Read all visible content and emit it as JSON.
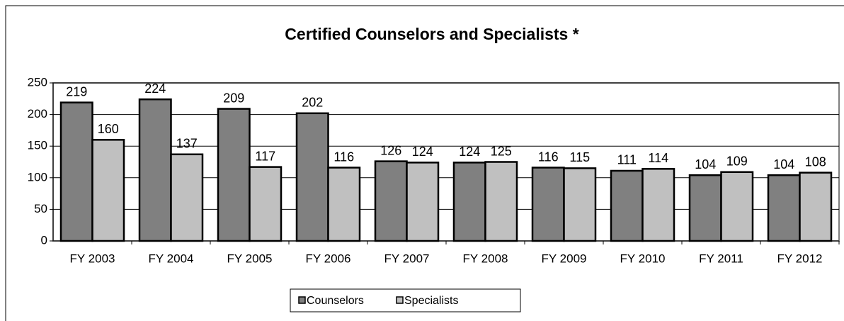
{
  "chart_data": {
    "type": "bar",
    "title": "Certified Counselors and Specialists *",
    "categories": [
      "FY 2003",
      "FY 2004",
      "FY 2005",
      "FY 2006",
      "FY 2007",
      "FY 2008",
      "FY 2009",
      "FY 2010",
      "FY 2011",
      "FY 2012"
    ],
    "series": [
      {
        "name": "Counselors",
        "color": "#808080",
        "values": [
          219,
          224,
          209,
          202,
          126,
          124,
          116,
          111,
          104,
          104
        ]
      },
      {
        "name": "Specialists",
        "color": "#c0c0c0",
        "values": [
          160,
          137,
          117,
          116,
          124,
          125,
          115,
          114,
          109,
          108
        ]
      }
    ],
    "ylim": [
      0,
      250
    ],
    "yticks": [
      0,
      50,
      100,
      150,
      200,
      250
    ],
    "grid": true,
    "legend": "bottom"
  }
}
